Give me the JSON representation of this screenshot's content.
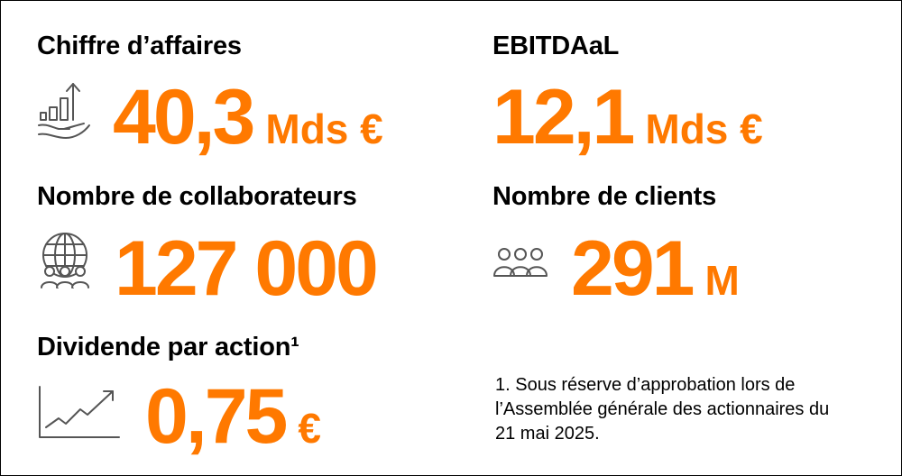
{
  "metrics": {
    "revenue": {
      "label": "Chiffre d’affaires",
      "value": "40,3",
      "unit": "Mds €"
    },
    "ebitdaal": {
      "label": "EBITDAaL",
      "value": "12,1",
      "unit": "Mds €"
    },
    "employees": {
      "label": "Nombre de collaborateurs",
      "value": "127 000"
    },
    "customers": {
      "label": "Nombre de clients",
      "value": "291",
      "unit": "M"
    },
    "dividend": {
      "label": "Dividende par action¹",
      "value": "0,75",
      "unit": "€"
    }
  },
  "footnote": "1. Sous réserve d’approbation lors de l’Assemblée générale des actionnaires du 21 mai 2025.",
  "colors": {
    "accent": "#ff7900",
    "text": "#000000",
    "icon": "#555555"
  },
  "icons": [
    "hand-growth-icon",
    "globe-people-icon",
    "people-group-icon",
    "trend-chart-icon"
  ]
}
